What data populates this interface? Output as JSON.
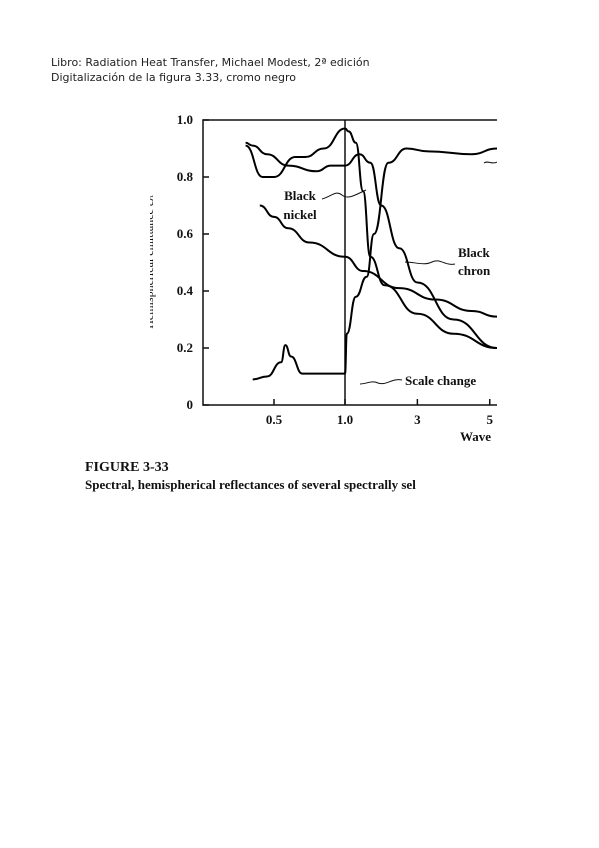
{
  "header": {
    "lines": [
      "Libro: Radiation Heat Transfer, Michael Modest, 2ª edición",
      "Digitalización de la figura 3.33, cromo negro"
    ]
  },
  "chart_data": {
    "type": "line",
    "ylabel": "Hemispherical emittance ελ",
    "xlabel": "Wave",
    "xlim": [
      0,
      5.2
    ],
    "ylim": [
      0,
      1
    ],
    "xticks": [
      0.5,
      {
        "value": 1,
        "label": "1.0"
      },
      3,
      5
    ],
    "yticks": [
      0,
      0.2,
      0.4,
      0.6,
      0.8,
      {
        "value": 1,
        "label": "1.0"
      }
    ],
    "annotations": [
      "Black",
      "nickel",
      "Black",
      "chron",
      "Scale change"
    ],
    "series": [
      {
        "color": "#000000",
        "x": [
          0.3,
          0.35,
          0.45,
          0.6,
          0.8,
          0.9,
          1.0,
          1.4,
          1.7,
          2.0,
          2.5,
          3,
          4,
          5.2
        ],
        "values": [
          0.92,
          0.91,
          0.88,
          0.84,
          0.82,
          0.84,
          0.84,
          0.88,
          0.85,
          0.7,
          0.55,
          0.43,
          0.3,
          0.2
        ]
      },
      {
        "color": "#000000",
        "x": [
          0.3,
          0.42,
          0.5,
          0.65,
          0.72,
          0.85,
          1.0,
          1.1,
          1.3,
          1.5,
          1.7,
          2.1,
          3,
          4,
          5.2
        ],
        "values": [
          0.91,
          0.8,
          0.8,
          0.87,
          0.87,
          0.9,
          0.97,
          0.96,
          0.92,
          0.75,
          0.52,
          0.42,
          0.32,
          0.25,
          0.2
        ]
      },
      {
        "color": "#000000",
        "x": [
          0.35,
          0.45,
          0.55,
          0.58,
          0.62,
          0.7,
          0.9,
          1.0,
          1.05,
          1.3,
          1.6,
          1.8,
          2.2,
          2.7,
          3.3,
          4.5,
          5.2
        ],
        "values": [
          0.09,
          0.1,
          0.15,
          0.21,
          0.17,
          0.11,
          0.11,
          0.11,
          0.25,
          0.38,
          0.45,
          0.6,
          0.85,
          0.9,
          0.89,
          0.88,
          0.9
        ]
      },
      {
        "color": "#000000",
        "x": [
          0.4,
          0.5,
          0.6,
          0.75,
          1.0,
          1.5,
          2.5,
          3.5,
          4.5,
          5.2
        ],
        "values": [
          0.7,
          0.66,
          0.62,
          0.57,
          0.52,
          0.47,
          0.41,
          0.37,
          0.33,
          0.31
        ]
      }
    ]
  },
  "caption": {
    "title": "FIGURE 3-33",
    "text": "Spectral, hemispherical reflectances of several spectrally sel"
  }
}
